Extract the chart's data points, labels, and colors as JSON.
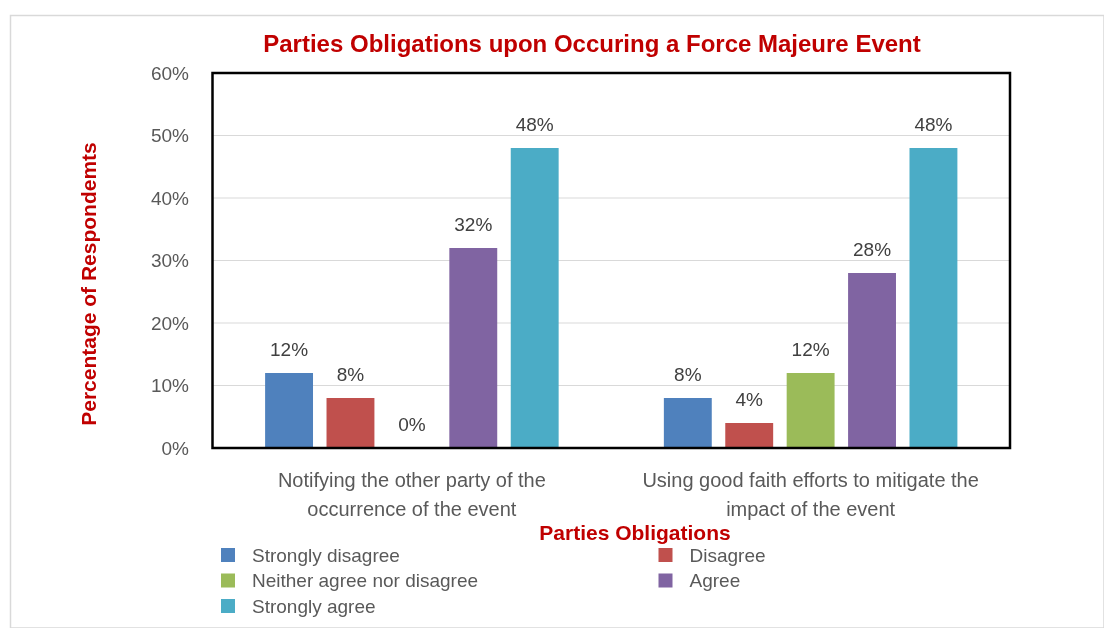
{
  "chart_data": {
    "type": "bar",
    "title": "Parties Obligations upon Occuring a Force Majeure Event",
    "xlabel": "Parties Obligations",
    "ylabel": "Percentage of Respondemts",
    "categories": [
      "Notifying the other party of the occurrence of the event",
      "Using good faith efforts to mitigate the impact of the event"
    ],
    "series": [
      {
        "name": "Strongly disagree",
        "color": "#4f81bd",
        "values": [
          12,
          8
        ],
        "value_labels": [
          "12%",
          "8%"
        ]
      },
      {
        "name": "Disagree",
        "color": "#c0504d",
        "values": [
          8,
          4
        ],
        "value_labels": [
          "8%",
          "4%"
        ]
      },
      {
        "name": "Neither agree nor disagree",
        "color": "#9bbb59",
        "values": [
          0,
          12
        ],
        "value_labels": [
          "0%",
          "12%"
        ]
      },
      {
        "name": "Agree",
        "color": "#8064a2",
        "values": [
          32,
          28
        ],
        "value_labels": [
          "32%",
          "28%"
        ]
      },
      {
        "name": "Strongly agree",
        "color": "#4bacc6",
        "values": [
          48,
          48
        ],
        "value_labels": [
          "48%",
          "48%"
        ]
      }
    ],
    "ylim": [
      0,
      60
    ],
    "yticks": [
      {
        "value": 0,
        "label": "0%"
      },
      {
        "value": 10,
        "label": "10%"
      },
      {
        "value": 20,
        "label": "20%"
      },
      {
        "value": 30,
        "label": "30%"
      },
      {
        "value": 40,
        "label": "40%"
      },
      {
        "value": 50,
        "label": "50%"
      },
      {
        "value": 60,
        "label": "60%"
      }
    ],
    "grid": "y",
    "legend": "bottom"
  }
}
